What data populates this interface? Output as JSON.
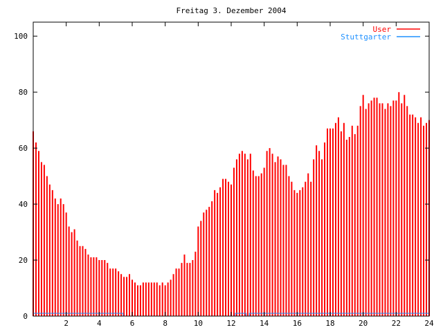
{
  "chart_data": {
    "type": "bar",
    "style": "impulses",
    "title": "Freitag 3. Dezember 2004",
    "xlabel": "",
    "ylabel": "",
    "xlim": [
      0,
      24
    ],
    "ylim": [
      0,
      105
    ],
    "x_ticks": [
      "2",
      "4",
      "6",
      "8",
      "10",
      "12",
      "14",
      "16",
      "18",
      "20",
      "22",
      "24"
    ],
    "x_tick_values": [
      2,
      4,
      6,
      8,
      10,
      12,
      14,
      16,
      18,
      20,
      22,
      24
    ],
    "y_ticks": [
      "0",
      "20",
      "40",
      "60",
      "80",
      "100"
    ],
    "y_tick_values": [
      0,
      20,
      40,
      60,
      80,
      100
    ],
    "x_step_hours": 0.1666667,
    "legend_position": "top-right",
    "grid": false,
    "series": [
      {
        "name": "User",
        "color": "#ff0000",
        "values": [
          66,
          62,
          59,
          55,
          54,
          50,
          47,
          45,
          42,
          40,
          42,
          40,
          37,
          32,
          30,
          31,
          27,
          25,
          25,
          24,
          22,
          21,
          21,
          21,
          20,
          20,
          20,
          19,
          17,
          17,
          17,
          16,
          15,
          14,
          14,
          15,
          13,
          12,
          11,
          11,
          12,
          12,
          12,
          12,
          12,
          12,
          11,
          12,
          11,
          12,
          13,
          15,
          17,
          17,
          19,
          22,
          19,
          19,
          20,
          23,
          32,
          34,
          37,
          38,
          39,
          41,
          45,
          44,
          46,
          49,
          49,
          48,
          47,
          53,
          56,
          58,
          59,
          58,
          56,
          58,
          52,
          50,
          50,
          51,
          53,
          59,
          60,
          58,
          55,
          57,
          56,
          54,
          54,
          50,
          48,
          45,
          44,
          45,
          46,
          48,
          51,
          48,
          56,
          61,
          59,
          56,
          62,
          67,
          67,
          67,
          69,
          71,
          66,
          69,
          63,
          64,
          68,
          65,
          68,
          75,
          79,
          74,
          76,
          77,
          78,
          78,
          76,
          76,
          74,
          76,
          75,
          77,
          77,
          80,
          76,
          79,
          75,
          72,
          72,
          71,
          69,
          71,
          68,
          69,
          70
        ]
      },
      {
        "name": "Stuttgarter",
        "color": "#1e90ff",
        "segments": [
          {
            "x": [
              0,
              5.45
            ],
            "y": 1
          },
          {
            "x": [
              5.45,
              12.25
            ],
            "y": 0
          },
          {
            "x": [
              12.25,
              12.9
            ],
            "y": 1
          },
          {
            "x": [
              12.9,
              13.1
            ],
            "y": 0
          },
          {
            "x": [
              13.1,
              24
            ],
            "y": 1
          }
        ]
      }
    ]
  }
}
